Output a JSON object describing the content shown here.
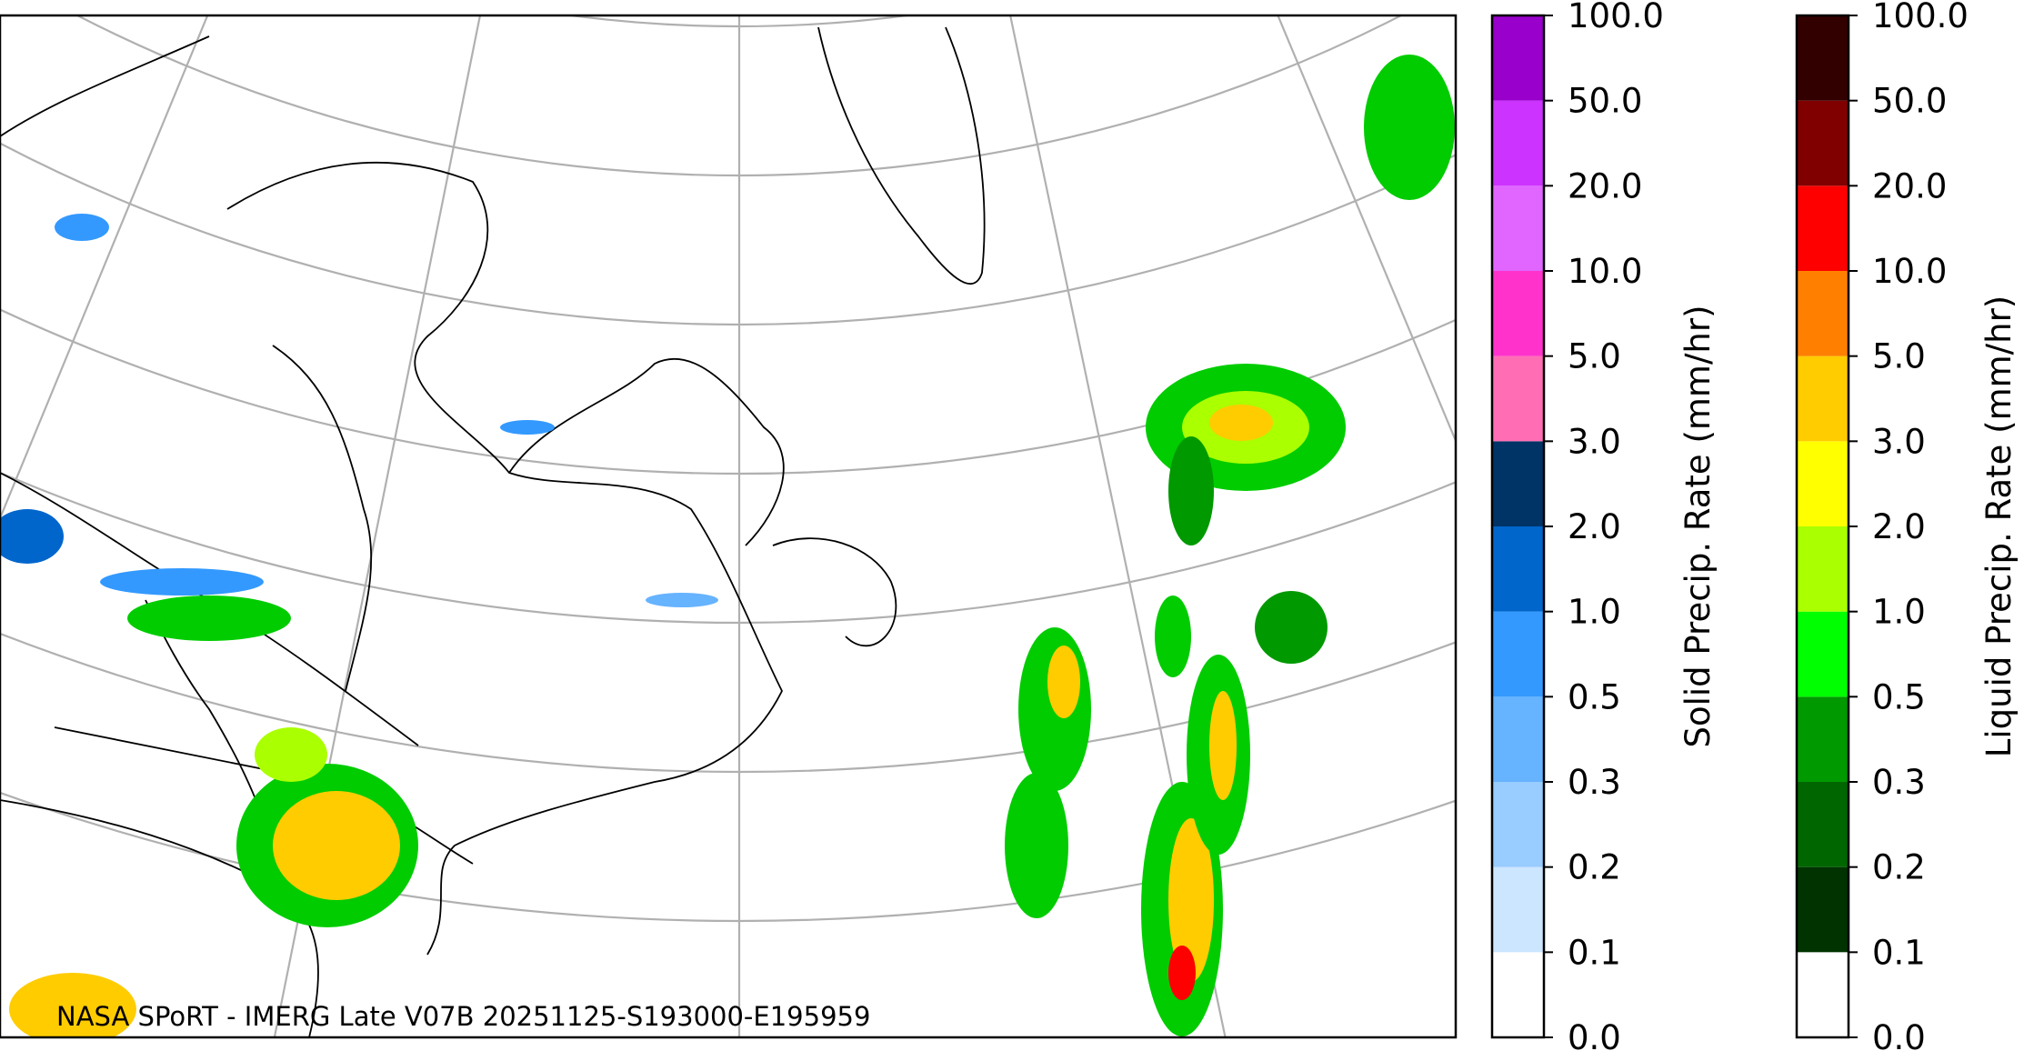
{
  "map": {
    "credit": "NASA SPoRT - IMERG Late V07B 20251125-S193000-E195959"
  },
  "colorbars": [
    {
      "label": "Solid Precip. Rate (mm/hr)",
      "ticks": [
        {
          "value": 0,
          "label": "0.0"
        },
        {
          "value": 0.1,
          "label": "0.1"
        },
        {
          "value": 0.2,
          "label": "0.2"
        },
        {
          "value": 0.3,
          "label": "0.3"
        },
        {
          "value": 0.5,
          "label": "0.5"
        },
        {
          "value": 1,
          "label": "1.0"
        },
        {
          "value": 2,
          "label": "2.0"
        },
        {
          "value": 3,
          "label": "3.0"
        },
        {
          "value": 5,
          "label": "5.0"
        },
        {
          "value": 10,
          "label": "10.0"
        },
        {
          "value": 20,
          "label": "20.0"
        },
        {
          "value": 50,
          "label": "50.0"
        },
        {
          "value": 100,
          "label": "100.0"
        }
      ],
      "colors": [
        "#ffffff",
        "#cce6ff",
        "#99ccff",
        "#66b3ff",
        "#3399ff",
        "#0066cc",
        "#003366",
        "#ff6eb4",
        "#ff33cc",
        "#e066ff",
        "#cc33ff",
        "#9900cc"
      ]
    },
    {
      "label": "Liquid Precip. Rate (mm/hr)",
      "ticks": [
        {
          "value": 0,
          "label": "0.0"
        },
        {
          "value": 0.1,
          "label": "0.1"
        },
        {
          "value": 0.2,
          "label": "0.2"
        },
        {
          "value": 0.3,
          "label": "0.3"
        },
        {
          "value": 0.5,
          "label": "0.5"
        },
        {
          "value": 1,
          "label": "1.0"
        },
        {
          "value": 2,
          "label": "2.0"
        },
        {
          "value": 3,
          "label": "3.0"
        },
        {
          "value": 5,
          "label": "5.0"
        },
        {
          "value": 10,
          "label": "10.0"
        },
        {
          "value": 20,
          "label": "20.0"
        },
        {
          "value": 50,
          "label": "50.0"
        },
        {
          "value": 100,
          "label": "100.0"
        }
      ],
      "colors": [
        "#ffffff",
        "#003300",
        "#006600",
        "#009900",
        "#00ff00",
        "#aaff00",
        "#ffff00",
        "#ffcc00",
        "#ff8000",
        "#ff0000",
        "#800000",
        "#330000"
      ]
    }
  ]
}
